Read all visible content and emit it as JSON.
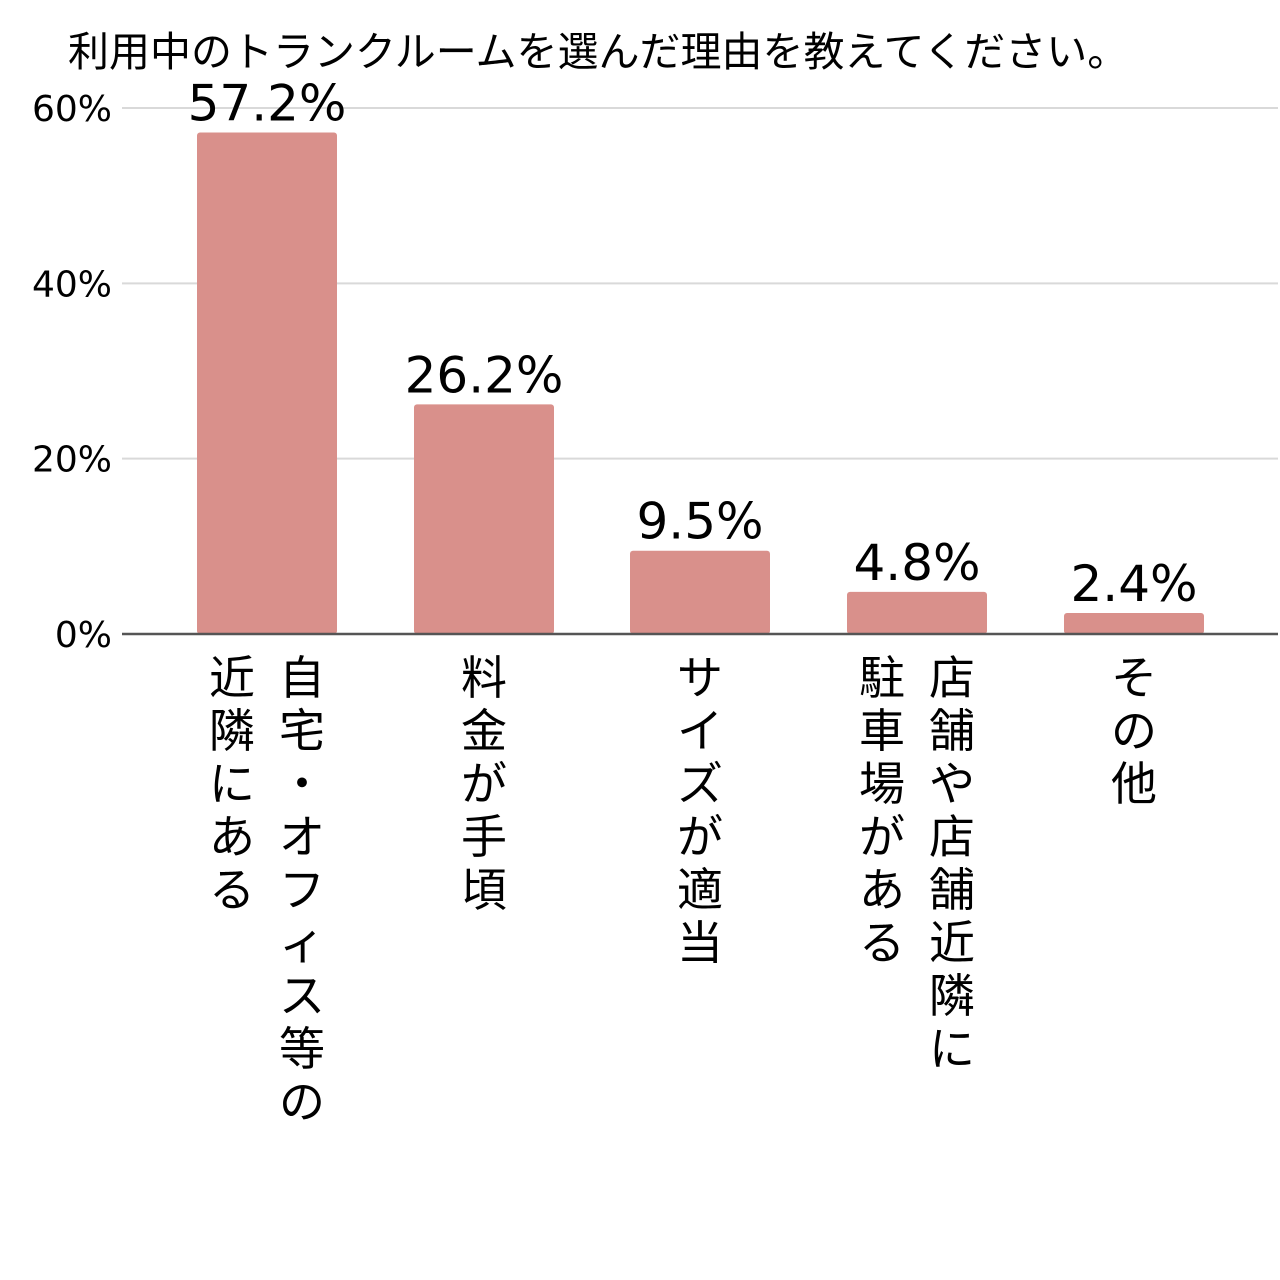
{
  "chart_data": {
    "type": "bar",
    "title": "利用中のトランクルームを選んだ理由を教えてください。",
    "categories": [
      "自宅・オフィス等の近隣にある",
      "料金が手頃",
      "サイズが適当",
      "店舗や店舗近隣に駐車場がある",
      "その他"
    ],
    "values": [
      57.2,
      26.2,
      9.5,
      4.8,
      2.4
    ],
    "data_labels": [
      "57.2%",
      "26.2%",
      "9.5%",
      "4.8%",
      "2.4%"
    ],
    "category_label_lines": [
      [
        "自宅・オフィス等の",
        "近隣にある"
      ],
      [
        "料金が手頃"
      ],
      [
        "サイズが適当"
      ],
      [
        "店舗や店舗近隣に",
        "駐車場がある"
      ],
      [
        "その他"
      ]
    ],
    "y_ticks": [
      0,
      20,
      40,
      60
    ],
    "y_tick_labels": [
      "0%",
      "20%",
      "40%",
      "60%"
    ],
    "ylim": [
      0,
      60
    ],
    "bar_color": "#d9908b",
    "grid": true,
    "legend": "none"
  }
}
